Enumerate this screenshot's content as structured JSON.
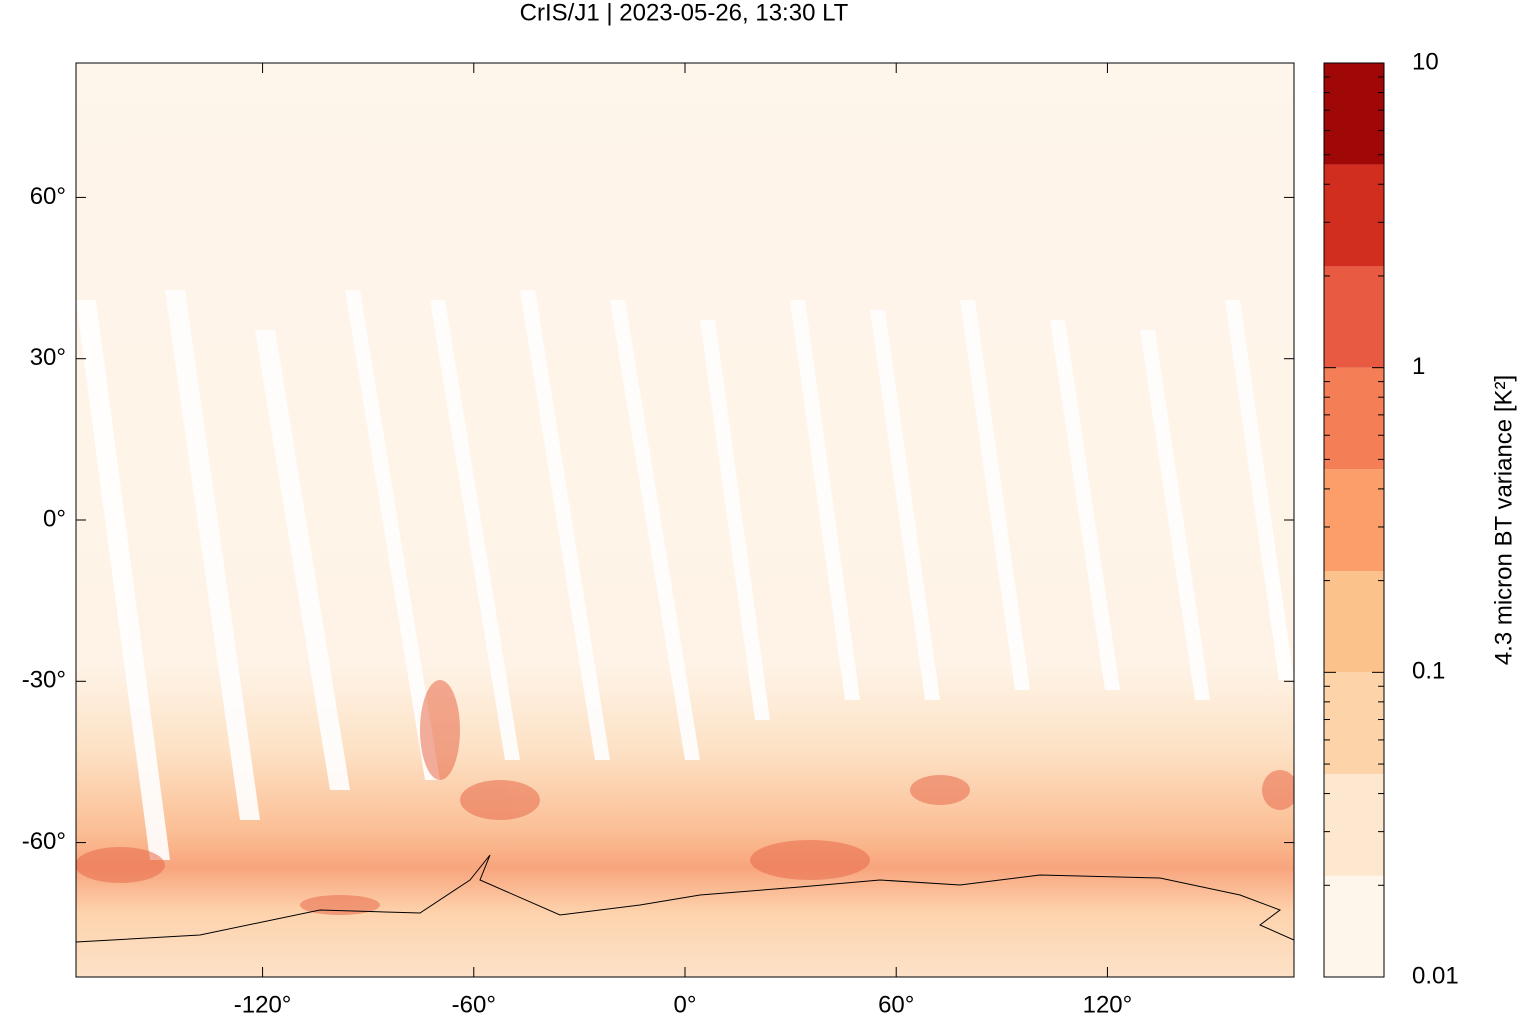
{
  "chart_data": {
    "type": "map",
    "title": "CrIS/J1 | 2023-05-26, 13:30 LT",
    "xlim": [
      -173,
      173
    ],
    "ylim": [
      -85,
      85
    ],
    "xticks": [
      {
        "value": -120,
        "label": "-120°"
      },
      {
        "value": -60,
        "label": "-60°"
      },
      {
        "value": 0,
        "label": "0°"
      },
      {
        "value": 60,
        "label": "60°"
      },
      {
        "value": 120,
        "label": "120°"
      }
    ],
    "yticks": [
      {
        "value": -60,
        "label": "-60°"
      },
      {
        "value": -30,
        "label": "-30°"
      },
      {
        "value": 0,
        "label": "0°"
      },
      {
        "value": 30,
        "label": "30°"
      },
      {
        "value": 60,
        "label": "60°"
      }
    ],
    "colorbar": {
      "label": "4.3 micron BT variance [K²]",
      "log_scale": true,
      "lim": [
        0.01,
        10
      ],
      "ticks": [
        {
          "value": 0.01,
          "label": "0.01"
        },
        {
          "value": 0.1,
          "label": "0.1"
        },
        1,
        10
      ],
      "minor_ticks": [
        0.02,
        0.03,
        0.04,
        0.05,
        0.06,
        0.07,
        0.08,
        0.09,
        0.2,
        0.3,
        0.4,
        0.5,
        0.6,
        0.7,
        0.8,
        0.9,
        2,
        3,
        4,
        5,
        6,
        7,
        8,
        9
      ],
      "levels": [
        0.01,
        0.0215,
        0.0464,
        0.1,
        0.215,
        0.464,
        1,
        2.15,
        4.64,
        10
      ],
      "colors": [
        "#fef5eb",
        "#fde7cf",
        "#fdd4aa",
        "#fcc28b",
        "#fc9e69",
        "#f47e55",
        "#e85a41",
        "#d22e20",
        "#a00808"
      ]
    }
  }
}
